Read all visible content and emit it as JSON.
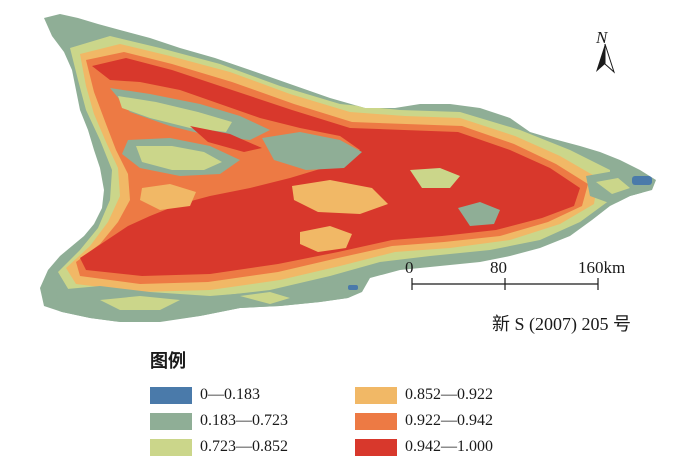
{
  "map": {
    "north_label": "N",
    "scale": {
      "ticks": [
        "0",
        "80",
        "160km"
      ]
    },
    "map_number": "新 S (2007) 205 号",
    "classes": {
      "c1": "#4a7aaa",
      "c2": "#8fae96",
      "c3": "#cbd68a",
      "c4": "#f1b866",
      "c5": "#ed7a44",
      "c6": "#d8382c"
    }
  },
  "legend": {
    "title": "图例",
    "items": [
      {
        "label": "0—0.183",
        "color": "#4a7aaa"
      },
      {
        "label": "0.183—0.723",
        "color": "#8fae96"
      },
      {
        "label": "0.723—0.852",
        "color": "#cbd68a"
      },
      {
        "label": "0.852—0.922",
        "color": "#f1b866"
      },
      {
        "label": "0.922—0.942",
        "color": "#ed7a44"
      },
      {
        "label": "0.942—1.000",
        "color": "#d8382c"
      }
    ]
  }
}
